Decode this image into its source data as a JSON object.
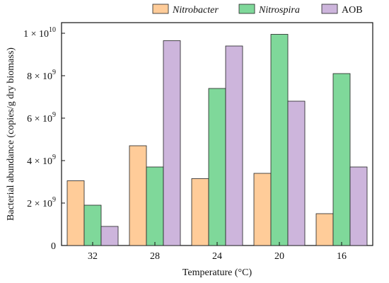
{
  "chart_data": {
    "type": "bar",
    "title": "",
    "xlabel": "Temperature (°C)",
    "ylabel": "Bacterial abundance (copies/g dry biomass)",
    "categories": [
      "32",
      "28",
      "24",
      "20",
      "16"
    ],
    "ylim": [
      0,
      10500000000.0
    ],
    "yticks": [
      {
        "value": 0,
        "mantissa": "0",
        "exponent": ""
      },
      {
        "value": 2000000000.0,
        "mantissa": "2 × 10",
        "exponent": "9"
      },
      {
        "value": 4000000000.0,
        "mantissa": "4 × 10",
        "exponent": "9"
      },
      {
        "value": 6000000000.0,
        "mantissa": "6 × 10",
        "exponent": "9"
      },
      {
        "value": 8000000000.0,
        "mantissa": "8 × 10",
        "exponent": "9"
      },
      {
        "value": 10000000000.0,
        "mantissa": "1 × 10",
        "exponent": "10"
      }
    ],
    "series": [
      {
        "name": "Nitrobacter",
        "italic": true,
        "color": "#FFCC99",
        "values": [
          3050000000.0,
          4700000000.0,
          3150000000.0,
          3400000000.0,
          1500000000.0
        ]
      },
      {
        "name": "Nitrospira",
        "italic": true,
        "color": "#7FD89A",
        "values": [
          1900000000.0,
          3700000000.0,
          7400000000.0,
          9950000000.0,
          8100000000.0
        ]
      },
      {
        "name": "AOB",
        "italic": false,
        "color": "#CDB5DC",
        "values": [
          900000000.0,
          9650000000.0,
          9400000000.0,
          6800000000.0,
          3700000000.0
        ]
      }
    ],
    "legend_position": "top",
    "grid": false
  }
}
